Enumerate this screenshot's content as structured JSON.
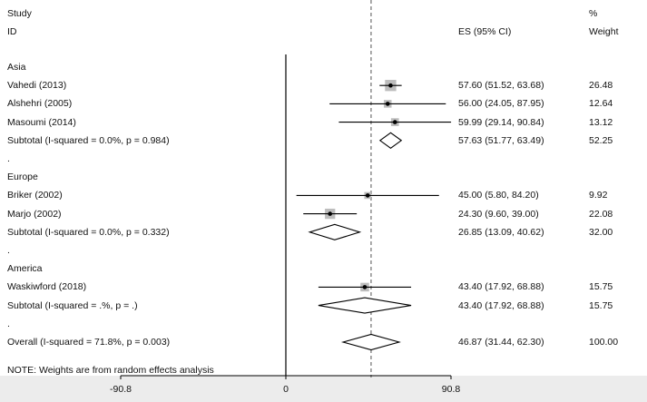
{
  "chart_data": {
    "type": "forest",
    "header": {
      "study": "Study",
      "id": "ID",
      "es": "ES (95% CI)",
      "pct": "%",
      "weight": "Weight"
    },
    "xaxis": {
      "range": [
        -90.8,
        90.8
      ],
      "ticks": [
        -90.8,
        0,
        90.8
      ],
      "tick_labels": [
        "-90.8",
        "0",
        "90.8"
      ],
      "null_line": 0,
      "overall_line": 46.87
    },
    "rows": [
      {
        "kind": "group",
        "label": "Asia"
      },
      {
        "kind": "study",
        "label": "Vahedi (2013)",
        "es": 57.6,
        "lo": 51.52,
        "hi": 63.68,
        "weight": 26.48,
        "es_text": "57.60 (51.52, 63.68)",
        "weight_text": "26.48"
      },
      {
        "kind": "study",
        "label": "Alshehri (2005)",
        "es": 56.0,
        "lo": 24.05,
        "hi": 87.95,
        "weight": 12.64,
        "es_text": "56.00 (24.05, 87.95)",
        "weight_text": "12.64"
      },
      {
        "kind": "study",
        "label": "Masoumi (2014)",
        "es": 59.99,
        "lo": 29.14,
        "hi": 90.84,
        "weight": 13.12,
        "es_text": "59.99 (29.14, 90.84)",
        "weight_text": "13.12"
      },
      {
        "kind": "subtotal",
        "label": "Subtotal  (I-squared = 0.0%, p = 0.984)",
        "es": 57.63,
        "lo": 51.77,
        "hi": 63.49,
        "es_text": "57.63 (51.77, 63.49)",
        "weight_text": "52.25"
      },
      {
        "kind": "spacer",
        "label": "."
      },
      {
        "kind": "group",
        "label": "Europe"
      },
      {
        "kind": "study",
        "label": "Briker (2002)",
        "es": 45.0,
        "lo": 5.8,
        "hi": 84.2,
        "weight": 9.92,
        "es_text": "45.00 (5.80, 84.20)",
        "weight_text": "9.92"
      },
      {
        "kind": "study",
        "label": "Marjo (2002)",
        "es": 24.3,
        "lo": 9.6,
        "hi": 39.0,
        "weight": 22.08,
        "es_text": "24.30 (9.60, 39.00)",
        "weight_text": "22.08"
      },
      {
        "kind": "subtotal",
        "label": "Subtotal  (I-squared = 0.0%, p = 0.332)",
        "es": 26.85,
        "lo": 13.09,
        "hi": 40.62,
        "es_text": "26.85 (13.09, 40.62)",
        "weight_text": "32.00"
      },
      {
        "kind": "spacer",
        "label": "."
      },
      {
        "kind": "group",
        "label": "America"
      },
      {
        "kind": "study",
        "label": "Waskiwford (2018)",
        "es": 43.4,
        "lo": 17.92,
        "hi": 68.88,
        "weight": 15.75,
        "es_text": "43.40 (17.92, 68.88)",
        "weight_text": "15.75"
      },
      {
        "kind": "subtotal",
        "label": "Subtotal  (I-squared = .%, p = .)",
        "es": 43.4,
        "lo": 17.92,
        "hi": 68.88,
        "es_text": "43.40 (17.92, 68.88)",
        "weight_text": "15.75"
      },
      {
        "kind": "spacer",
        "label": "."
      },
      {
        "kind": "overall",
        "label": "Overall  (I-squared = 71.8%, p = 0.003)",
        "es": 46.87,
        "lo": 31.44,
        "hi": 62.3,
        "es_text": "46.87 (31.44, 62.30)",
        "weight_text": "100.00"
      }
    ],
    "note": "NOTE: Weights are from random effects analysis",
    "colors": {
      "line": "#000000",
      "weight_box": "#bdbdbd",
      "overall_line": "#555555",
      "band": "#ececec"
    }
  }
}
